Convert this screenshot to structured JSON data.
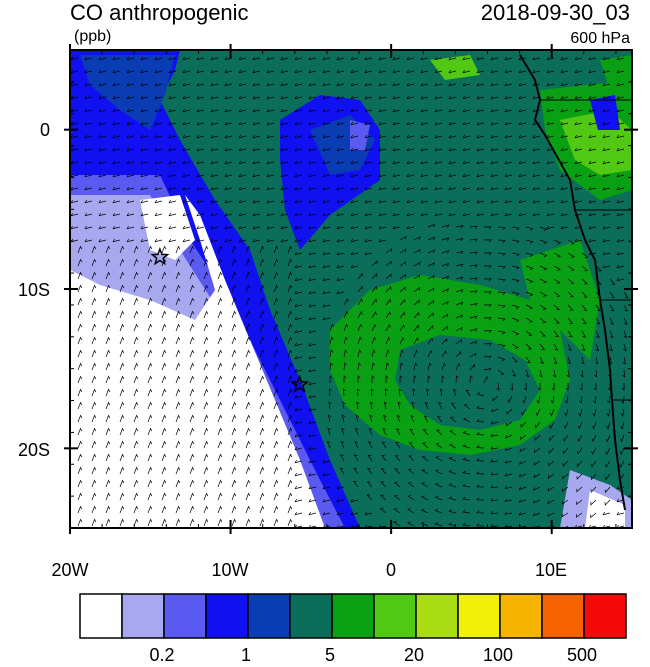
{
  "title": "CO anthropogenic",
  "datetime": "2018-09-30_03",
  "units": "(ppb)",
  "pressure_level": "600 hPa",
  "map": {
    "lat_ticks": [
      "0",
      "10S",
      "20S"
    ],
    "lon_ticks": [
      "20W",
      "10W",
      "0",
      "10E"
    ],
    "lon_range": [
      -20,
      15
    ],
    "lat_range": [
      -25,
      5
    ],
    "markers": [
      {
        "name": "star",
        "lon": -14.4,
        "lat": -8.0
      },
      {
        "name": "star",
        "lon": -5.7,
        "lat": -16.0
      }
    ]
  },
  "colorbar": {
    "colors": [
      "#ffffff",
      "#a8a8f0",
      "#5a5af0",
      "#1010f0",
      "#0a3cb4",
      "#0a6e5a",
      "#0aa014",
      "#50c814",
      "#aadc14",
      "#f0f00a",
      "#f5b400",
      "#f56400",
      "#f50a0a"
    ],
    "labels": [
      "0.2",
      "1",
      "5",
      "20",
      "100",
      "500"
    ]
  },
  "field_colors": {
    "white": "#ffffff",
    "light": "#a8a8f0",
    "mid": "#5a5af0",
    "blue": "#1010f0",
    "navy": "#0a3cb4",
    "teal": "#0a6e5a",
    "green": "#0aa014",
    "lime": "#50c814",
    "yellowgreen": "#aadc14"
  }
}
